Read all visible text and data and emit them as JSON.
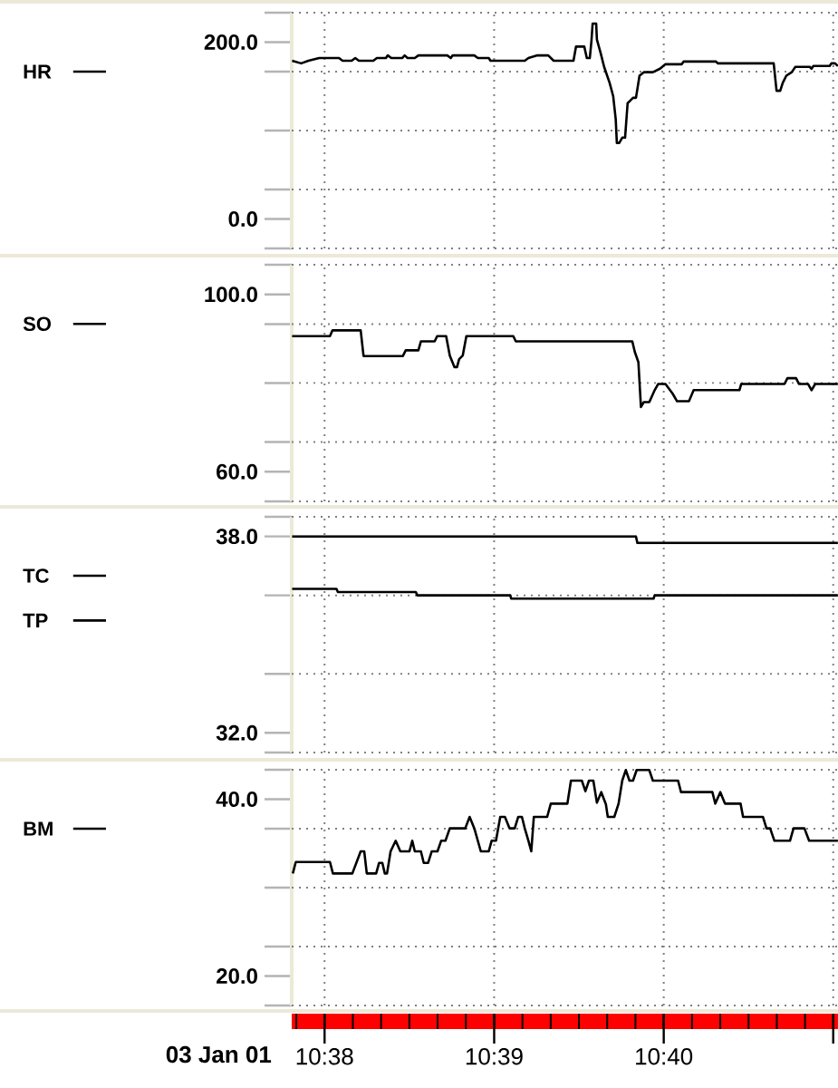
{
  "chart_data": [
    {
      "type": "line",
      "grid": true,
      "legend": "left",
      "tick_labels": "y",
      "xlim": [
        10.6301,
        10.6838
      ],
      "ylim": [
        -33.3,
        233.3
      ],
      "xticks": [
        {
          "value": 10.63333,
          "label": null
        },
        {
          "value": 10.65,
          "label": null
        },
        {
          "value": 10.66667,
          "label": null
        },
        {
          "value": 10.68333,
          "label": null
        }
      ],
      "yticks": [
        {
          "value": -33.3,
          "label": null
        },
        {
          "value": 0,
          "label": "0.0"
        },
        {
          "value": 33.3,
          "label": null
        },
        {
          "value": 100,
          "label": null
        },
        {
          "value": 166.7,
          "label": null
        },
        {
          "value": 200,
          "label": "200.0"
        },
        {
          "value": 233.3,
          "label": null
        }
      ],
      "series": [
        {
          "name": "HR",
          "color": "#000000",
          "x": [
            10.63014,
            10.63103,
            10.63174,
            10.6328,
            10.63475,
            10.6351,
            10.63599,
            10.63635,
            10.6367,
            10.63812,
            10.63847,
            10.63936,
            10.63954,
            10.63989,
            10.64096,
            10.6412,
            10.64149,
            10.6422,
            10.64255,
            10.64539,
            10.64574,
            10.64592,
            10.64805,
            10.6484,
            10.64947,
            10.64964,
            10.65301,
            10.65337,
            10.65425,
            10.65532,
            10.65585,
            10.6578,
            10.65805,
            10.65886,
            10.65911,
            10.6594,
            10.65957,
            10.65968,
            10.66003,
            10.6601,
            10.66046,
            10.66081,
            10.66135,
            10.6617,
            10.66195,
            10.66206,
            10.6623,
            10.66259,
            10.66287,
            10.66312,
            10.6633,
            10.66365,
            10.66394,
            10.66429,
            10.66471,
            10.6656,
            10.66631,
            10.66684,
            10.66844,
            10.66862,
            10.67181,
            10.67198,
            10.67748,
            10.67776,
            10.67812,
            10.67837,
            10.67872,
            10.67925,
            10.67961,
            10.68103,
            10.6812,
            10.68138,
            10.68298,
            10.68315,
            10.68351,
            10.68379
          ],
          "values": [
            179,
            176,
            179,
            182,
            182,
            179,
            179,
            182,
            179,
            179,
            182,
            182,
            185,
            182,
            182,
            185,
            182,
            182,
            185,
            185,
            182,
            185,
            185,
            182,
            182,
            179,
            179,
            182,
            185,
            185,
            179,
            179,
            195,
            195,
            182,
            182,
            202,
            221,
            221,
            203,
            188,
            172,
            154,
            139,
            113,
            86,
            86,
            92,
            92,
            131,
            133,
            137,
            137,
            162,
            166,
            166,
            170,
            175,
            175,
            178,
            178,
            176,
            176,
            145,
            145,
            154,
            162,
            166,
            172,
            172,
            170,
            173,
            173,
            176,
            176,
            173
          ]
        }
      ]
    },
    {
      "type": "line",
      "grid": true,
      "legend": "left",
      "tick_labels": "y",
      "xlim": [
        10.6301,
        10.6838
      ],
      "ylim": [
        53.3,
        106.7
      ],
      "xticks": [
        {
          "value": 10.63333,
          "label": null
        },
        {
          "value": 10.65,
          "label": null
        },
        {
          "value": 10.66667,
          "label": null
        },
        {
          "value": 10.68333,
          "label": null
        }
      ],
      "yticks": [
        {
          "value": 53.3,
          "label": null
        },
        {
          "value": 60,
          "label": "60.0"
        },
        {
          "value": 66.7,
          "label": null
        },
        {
          "value": 80,
          "label": null
        },
        {
          "value": 93.3,
          "label": null
        },
        {
          "value": 100,
          "label": "100.0"
        },
        {
          "value": 106.7,
          "label": null
        }
      ],
      "series": [
        {
          "name": "SO",
          "color": "#000000",
          "x": [
            10.63014,
            10.63386,
            10.63411,
            10.63688,
            10.63716,
            10.64103,
            10.64131,
            10.64255,
            10.6428,
            10.64415,
            10.6444,
            10.64528,
            10.64564,
            10.6461,
            10.64635,
            10.64656,
            10.64691,
            10.64727,
            10.65188,
            10.65213,
            10.66358,
            10.66383,
            10.66418,
            10.66443,
            10.66471,
            10.66525,
            10.66578,
            10.66613,
            10.66684,
            10.66755,
            10.66798,
            10.66915,
            10.66961,
            10.67411,
            10.67429,
            10.67854,
            10.67883,
            10.67968,
            10.67996,
            10.68085,
            10.6812,
            10.68156,
            10.68379
          ],
          "values": [
            90.6,
            90.6,
            91.9,
            91.9,
            86.1,
            86.1,
            87.4,
            87.4,
            89.4,
            89.4,
            90.6,
            90.6,
            86.2,
            83.6,
            83.6,
            85.4,
            86.2,
            90.6,
            90.6,
            89.4,
            89.4,
            87.0,
            84.7,
            74.6,
            75.7,
            75.7,
            78.4,
            79.8,
            79.8,
            77.6,
            75.9,
            75.9,
            78.4,
            78.4,
            79.8,
            79.8,
            81.1,
            81.1,
            79.8,
            79.8,
            78.4,
            79.8,
            79.8
          ]
        }
      ]
    },
    {
      "type": "line",
      "grid": true,
      "legend": "left",
      "tick_labels": "y",
      "xlim": [
        10.6301,
        10.6838
      ],
      "ylim": [
        31.4,
        38.6
      ],
      "xticks": [
        {
          "value": 10.63333,
          "label": null
        },
        {
          "value": 10.65,
          "label": null
        },
        {
          "value": 10.66667,
          "label": null
        },
        {
          "value": 10.68333,
          "label": null
        }
      ],
      "yticks": [
        {
          "value": 31.4,
          "label": null
        },
        {
          "value": 32,
          "label": "32.0"
        },
        {
          "value": 33.8,
          "label": null
        },
        {
          "value": 36.2,
          "label": null
        },
        {
          "value": 38,
          "label": "38.0"
        },
        {
          "value": 38.6,
          "label": null
        }
      ],
      "series": [
        {
          "name": "TC",
          "color": "#000000",
          "x": [
            10.63014,
            10.66394,
            10.66408,
            10.68379
          ],
          "values": [
            38.0,
            38.0,
            37.8,
            37.8
          ]
        },
        {
          "name": "TP",
          "color": "#000000",
          "x": [
            10.63014,
            10.6345,
            10.63464,
            10.6423,
            10.64245,
            10.65159,
            10.65167,
            10.66567,
            10.66578,
            10.68379
          ],
          "values": [
            36.4,
            36.4,
            36.3,
            36.3,
            36.2,
            36.2,
            36.1,
            36.1,
            36.2,
            36.2
          ]
        }
      ]
    },
    {
      "type": "line",
      "grid": true,
      "legend": "left",
      "xlabel": "03 Jan 01",
      "xlim": [
        10.6301,
        10.6838
      ],
      "ylim": [
        16.67,
        43.33
      ],
      "xticks": [
        {
          "value": 10.63333,
          "label": "10:38"
        },
        {
          "value": 10.65,
          "label": "10:39"
        },
        {
          "value": 10.66667,
          "label": "10:40"
        },
        {
          "value": 10.68333,
          "label": null
        }
      ],
      "yticks": [
        {
          "value": 16.67,
          "label": null
        },
        {
          "value": 20,
          "label": "20.0"
        },
        {
          "value": 23.33,
          "label": null
        },
        {
          "value": 30,
          "label": null
        },
        {
          "value": 36.67,
          "label": null
        },
        {
          "value": 40,
          "label": "40.0"
        },
        {
          "value": 43.33,
          "label": null
        }
      ],
      "series": [
        {
          "name": "BM",
          "color": "#000000",
          "x": [
            10.63021,
            10.6305,
            10.63386,
            10.63415,
            10.63606,
            10.63688,
            10.63723,
            10.63748,
            10.6384,
            10.63869,
            10.63901,
            10.63925,
            10.63947,
            10.63982,
            10.64032,
            10.64078,
            10.64167,
            10.64195,
            10.6422,
            10.6428,
            10.64308,
            10.64351,
            10.64386,
            10.64443,
            10.64479,
            10.64521,
            10.64564,
            10.64716,
            10.64759,
            10.64805,
            10.64869,
            10.64947,
            10.64975,
            10.65018,
            10.6506,
            10.65106,
            10.65152,
            10.65202,
            10.65237,
            10.65273,
            10.65301,
            10.65337,
            10.65365,
            10.6539,
            10.65521,
            10.65557,
            10.6572,
            10.65755,
            10.65862,
            10.65897,
            10.65932,
            10.65975,
            10.6601,
            10.66053,
            10.66099,
            10.66117,
            10.66181,
            10.66223,
            10.66259,
            10.66294,
            10.6633,
            10.66365,
            10.66401,
            10.66525,
            10.6656,
            10.66808,
            10.66837,
            10.67145,
            10.67174,
            10.67223,
            10.67269,
            10.67422,
            10.67447,
            10.67642,
            10.67677,
            10.67713,
            10.67755,
            10.67908,
            10.67943,
            10.6805,
            10.68096,
            10.68379
          ],
          "values": [
            31.6,
            32.9,
            32.9,
            31.6,
            31.6,
            34.1,
            34.1,
            31.6,
            31.6,
            32.8,
            32.8,
            31.6,
            31.6,
            34.1,
            35.3,
            34.1,
            34.1,
            35.3,
            34.1,
            34.1,
            32.8,
            32.8,
            34.1,
            34.1,
            35.3,
            35.3,
            36.7,
            36.7,
            38.0,
            36.7,
            34.1,
            34.1,
            35.3,
            35.3,
            38.0,
            38.0,
            36.7,
            36.7,
            38.0,
            38.0,
            36.7,
            35.3,
            34.1,
            38.0,
            38.0,
            39.5,
            39.5,
            42.1,
            42.1,
            40.9,
            42.1,
            42.1,
            39.6,
            40.8,
            39.4,
            38.0,
            38.0,
            39.5,
            42.1,
            43.3,
            42.1,
            42.1,
            43.3,
            43.3,
            42.1,
            42.1,
            40.8,
            40.8,
            39.5,
            40.8,
            39.5,
            39.5,
            38.0,
            38.0,
            36.7,
            36.7,
            35.3,
            35.3,
            36.7,
            36.7,
            35.3,
            35.3
          ]
        }
      ]
    }
  ]
}
